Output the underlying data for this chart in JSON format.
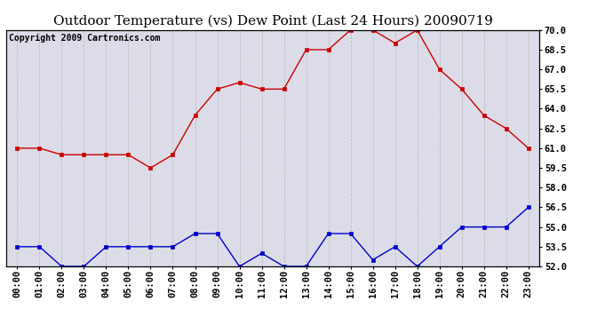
{
  "title": "Outdoor Temperature (vs) Dew Point (Last 24 Hours) 20090719",
  "copyright": "Copyright 2009 Cartronics.com",
  "hours": [
    "00:00",
    "01:00",
    "02:00",
    "03:00",
    "04:00",
    "05:00",
    "06:00",
    "07:00",
    "08:00",
    "09:00",
    "10:00",
    "11:00",
    "12:00",
    "13:00",
    "14:00",
    "15:00",
    "16:00",
    "17:00",
    "18:00",
    "19:00",
    "20:00",
    "21:00",
    "22:00",
    "23:00"
  ],
  "temp": [
    61.0,
    61.0,
    60.5,
    60.5,
    60.5,
    60.5,
    59.5,
    60.5,
    63.5,
    65.5,
    66.0,
    65.5,
    65.5,
    68.5,
    68.5,
    70.0,
    70.0,
    69.0,
    70.0,
    67.0,
    65.5,
    63.5,
    62.5,
    61.0
  ],
  "dew": [
    53.5,
    53.5,
    52.0,
    52.0,
    53.5,
    53.5,
    53.5,
    53.5,
    54.5,
    54.5,
    52.0,
    53.0,
    52.0,
    52.0,
    54.5,
    54.5,
    52.5,
    53.5,
    52.0,
    53.5,
    55.0,
    55.0,
    55.0,
    56.5
  ],
  "temp_color": "#cc0000",
  "dew_color": "#0000cc",
  "bg_color": "#ffffff",
  "plot_bg_color": "#dcdce8",
  "grid_color": "#bbbbbb",
  "ylim": [
    52.0,
    70.0
  ],
  "yticks": [
    52.0,
    53.5,
    55.0,
    56.5,
    58.0,
    59.5,
    61.0,
    62.5,
    64.0,
    65.5,
    67.0,
    68.5,
    70.0
  ],
  "title_fontsize": 11,
  "copyright_fontsize": 7,
  "tick_fontsize": 7.5,
  "marker_size": 3
}
